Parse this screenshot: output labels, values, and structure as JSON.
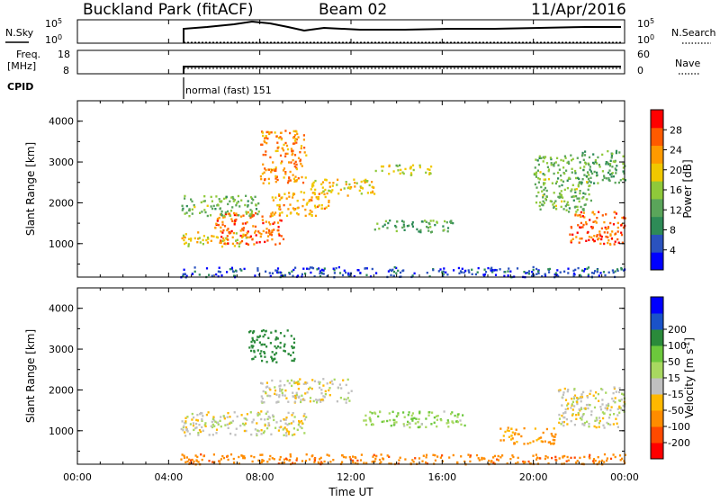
{
  "header": {
    "title": "Buckland Park (fitACF)",
    "beam": "Beam 02",
    "date": "11/Apr/2016"
  },
  "side_labels": {
    "nsky": "N.Sky",
    "freq_top": "Freq.",
    "freq_units": "[MHz]",
    "cpid": "CPID",
    "nsearch": "N.Search",
    "nave": "Nave"
  },
  "strip_ticks": {
    "noise_left_high": "10^5",
    "noise_left_low": "10^0",
    "noise_right_high": "10^5",
    "noise_right_low": "10^0",
    "freq_high": "18",
    "freq_low": "8",
    "nave_high": "60",
    "nave_low": "0"
  },
  "cpid_label": "normal (fast) 151",
  "colors": {
    "power": [
      "#0000ff",
      "#2a52be",
      "#2e8b57",
      "#5aa55a",
      "#8fc93a",
      "#f0c800",
      "#ff9a00",
      "#ff5a00",
      "#ff0000"
    ],
    "velocity": [
      "#ff0000",
      "#ff4a00",
      "#ff8c00",
      "#ffb800",
      "#c0c0c0",
      "#a8d860",
      "#6cc83c",
      "#2a8a3a",
      "#1a52c8",
      "#0000ff"
    ]
  },
  "chart_data": [
    {
      "type": "heatmap",
      "title": "",
      "ylabel": "Slant Range [km]",
      "xlabel": "",
      "x_ticks": [
        "00:00",
        "04:00",
        "08:00",
        "12:00",
        "16:00",
        "20:00",
        "00:00"
      ],
      "x_range_hours": [
        0,
        24
      ],
      "y_ticks": [
        1000,
        2000,
        3000,
        4000
      ],
      "ylim": [
        180,
        4500
      ],
      "colorbar": {
        "label": "Power [dB]",
        "ticks": [
          4,
          8,
          12,
          16,
          20,
          24,
          28
        ],
        "range": [
          0,
          32
        ]
      },
      "data_start_hour": 4.5,
      "regions": [
        {
          "t": [
            4.5,
            24
          ],
          "r": [
            200,
            450
          ],
          "v": 5
        },
        {
          "t": [
            4.5,
            7.5
          ],
          "r": [
            950,
            1300
          ],
          "v": 20
        },
        {
          "t": [
            6.0,
            9.0
          ],
          "r": [
            1000,
            1800
          ],
          "v": 26
        },
        {
          "t": [
            8.5,
            11.0
          ],
          "r": [
            1700,
            2300
          ],
          "v": 22
        },
        {
          "t": [
            4.5,
            8.0
          ],
          "r": [
            1700,
            2200
          ],
          "v": 14
        },
        {
          "t": [
            8.0,
            10.0
          ],
          "r": [
            2500,
            3800
          ],
          "v": 24
        },
        {
          "t": [
            10.0,
            13.0
          ],
          "r": [
            2200,
            2600
          ],
          "v": 20
        },
        {
          "t": [
            13.0,
            16.5
          ],
          "r": [
            1300,
            1600
          ],
          "v": 12
        },
        {
          "t": [
            13.0,
            15.5
          ],
          "r": [
            2700,
            2950
          ],
          "v": 18
        },
        {
          "t": [
            20.0,
            22.5
          ],
          "r": [
            1800,
            3200
          ],
          "v": 14
        },
        {
          "t": [
            21.5,
            24
          ],
          "r": [
            1000,
            1800
          ],
          "v": 26
        },
        {
          "t": [
            22.0,
            24
          ],
          "r": [
            2500,
            3300
          ],
          "v": 12
        }
      ]
    },
    {
      "type": "heatmap",
      "title": "",
      "ylabel": "Slant Range [km]",
      "xlabel": "Time UT",
      "x_ticks": [
        "00:00",
        "04:00",
        "08:00",
        "12:00",
        "16:00",
        "20:00",
        "00:00"
      ],
      "x_range_hours": [
        0,
        24
      ],
      "y_ticks": [
        1000,
        2000,
        3000,
        4000
      ],
      "ylim": [
        180,
        4500
      ],
      "colorbar": {
        "label": "Velocity [m s^-1]",
        "ticks": [
          -200,
          -100,
          -50,
          -15,
          15,
          50,
          100,
          200
        ],
        "range": [
          -250,
          250
        ]
      },
      "data_start_hour": 4.5,
      "regions": [
        {
          "t": [
            4.5,
            24
          ],
          "r": [
            200,
            450
          ],
          "v": -80
        },
        {
          "t": [
            4.5,
            10.0
          ],
          "r": [
            900,
            1500
          ],
          "v": 0
        },
        {
          "t": [
            7.5,
            9.5
          ],
          "r": [
            2700,
            3500
          ],
          "v": 160
        },
        {
          "t": [
            12.5,
            17.0
          ],
          "r": [
            1100,
            1500
          ],
          "v": 40
        },
        {
          "t": [
            18.5,
            21.0
          ],
          "r": [
            700,
            1100
          ],
          "v": -60
        },
        {
          "t": [
            21.0,
            24
          ],
          "r": [
            1100,
            2100
          ],
          "v": 0
        },
        {
          "t": [
            8.0,
            12.0
          ],
          "r": [
            1700,
            2300
          ],
          "v": 0
        }
      ]
    }
  ]
}
